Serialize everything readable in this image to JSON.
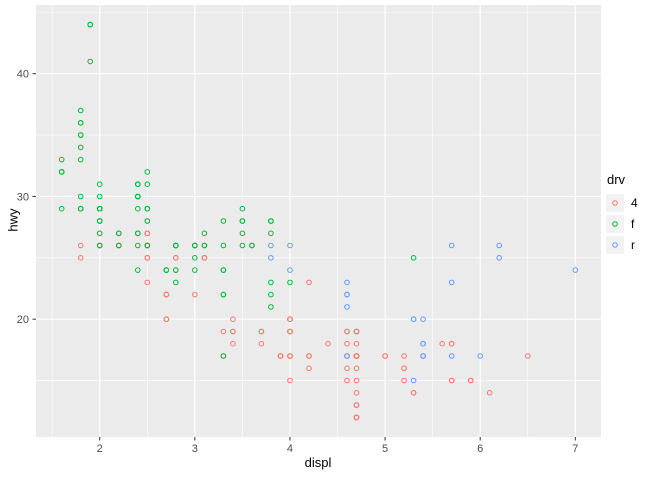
{
  "chart_data": {
    "type": "scatter",
    "title": "",
    "xlabel": "displ",
    "ylabel": "hwy",
    "x_ticks": [
      2,
      3,
      4,
      5,
      6,
      7
    ],
    "y_ticks": [
      20,
      30,
      40
    ],
    "x_minor_ticks": [
      1.5,
      2.5,
      3.5,
      4.5,
      5.5,
      6.5
    ],
    "y_minor_ticks": [
      15,
      25,
      35,
      45
    ],
    "x_domain": [
      1.33,
      7.27
    ],
    "y_domain": [
      10.4,
      45.6
    ],
    "grid": true,
    "panel_bg": "#EBEBEB",
    "grid_color": "#FFFFFF",
    "tick_color": "#333333",
    "tick_label_color": "#4D4D4D",
    "marker": "open-circle",
    "legend": {
      "title": "drv",
      "position": "right",
      "entries": [
        "4",
        "f",
        "r"
      ]
    },
    "series": [
      {
        "name": "4",
        "color": "#F8766D",
        "points": [
          [
            1.8,
            26
          ],
          [
            1.8,
            25
          ],
          [
            2.0,
            28
          ],
          [
            2.0,
            27
          ],
          [
            2.8,
            25
          ],
          [
            2.8,
            25
          ],
          [
            3.1,
            25
          ],
          [
            3.1,
            25
          ],
          [
            2.8,
            24
          ],
          [
            3.1,
            25
          ],
          [
            4.2,
            23
          ],
          [
            5.3,
            14
          ],
          [
            5.3,
            14
          ],
          [
            5.7,
            15
          ],
          [
            6.5,
            17
          ],
          [
            3.7,
            19
          ],
          [
            3.7,
            18
          ],
          [
            3.9,
            17
          ],
          [
            3.9,
            17
          ],
          [
            4.7,
            19
          ],
          [
            4.7,
            19
          ],
          [
            4.7,
            12
          ],
          [
            5.2,
            17
          ],
          [
            5.2,
            15
          ],
          [
            3.9,
            17
          ],
          [
            4.7,
            17
          ],
          [
            4.7,
            12
          ],
          [
            4.7,
            17
          ],
          [
            4.7,
            16
          ],
          [
            4.7,
            18
          ],
          [
            5.2,
            16
          ],
          [
            5.9,
            15
          ],
          [
            4.7,
            17
          ],
          [
            4.7,
            15
          ],
          [
            4.7,
            13
          ],
          [
            4.7,
            13
          ],
          [
            4.7,
            17
          ],
          [
            4.7,
            12
          ],
          [
            4.7,
            17
          ],
          [
            5.2,
            16
          ],
          [
            5.7,
            18
          ],
          [
            5.9,
            15
          ],
          [
            4.0,
            17
          ],
          [
            4.0,
            19
          ],
          [
            4.0,
            17
          ],
          [
            4.0,
            19
          ],
          [
            4.6,
            19
          ],
          [
            5.0,
            17
          ],
          [
            4.2,
            17
          ],
          [
            4.2,
            16
          ],
          [
            4.6,
            16
          ],
          [
            4.6,
            17
          ],
          [
            4.6,
            15
          ],
          [
            4.6,
            17
          ],
          [
            5.4,
            17
          ],
          [
            3.0,
            22
          ],
          [
            3.7,
            19
          ],
          [
            4.0,
            20
          ],
          [
            4.7,
            17
          ],
          [
            4.7,
            12
          ],
          [
            4.7,
            19
          ],
          [
            5.7,
            18
          ],
          [
            6.1,
            14
          ],
          [
            4.0,
            15
          ],
          [
            4.2,
            17
          ],
          [
            4.4,
            18
          ],
          [
            4.6,
            18
          ],
          [
            4.0,
            17
          ],
          [
            4.0,
            19
          ],
          [
            4.6,
            19
          ],
          [
            5.0,
            17
          ],
          [
            3.3,
            19
          ],
          [
            3.3,
            17
          ],
          [
            4.0,
            20
          ],
          [
            5.6,
            18
          ],
          [
            2.5,
            26
          ],
          [
            2.5,
            27
          ],
          [
            2.5,
            25
          ],
          [
            2.5,
            27
          ],
          [
            2.5,
            26
          ],
          [
            2.5,
            23
          ],
          [
            2.2,
            26
          ],
          [
            2.2,
            27
          ],
          [
            2.5,
            26
          ],
          [
            2.5,
            25
          ],
          [
            2.5,
            27
          ],
          [
            2.5,
            25
          ],
          [
            2.5,
            27
          ],
          [
            2.5,
            28
          ],
          [
            2.7,
            20
          ],
          [
            2.7,
            20
          ],
          [
            2.7,
            22
          ],
          [
            3.4,
            19
          ],
          [
            3.4,
            20
          ],
          [
            4.0,
            17
          ],
          [
            4.7,
            19
          ],
          [
            4.7,
            14
          ],
          [
            5.7,
            15
          ],
          [
            2.7,
            20
          ],
          [
            2.7,
            22
          ],
          [
            2.7,
            22
          ],
          [
            3.4,
            19
          ],
          [
            3.4,
            18
          ],
          [
            4.0,
            20
          ],
          [
            4.0,
            20
          ]
        ]
      },
      {
        "name": "f",
        "color": "#00BA38",
        "points": [
          [
            1.8,
            29
          ],
          [
            1.8,
            29
          ],
          [
            2.0,
            31
          ],
          [
            2.0,
            30
          ],
          [
            2.8,
            26
          ],
          [
            2.8,
            26
          ],
          [
            3.1,
            27
          ],
          [
            2.4,
            27
          ],
          [
            2.4,
            30
          ],
          [
            3.1,
            26
          ],
          [
            3.5,
            29
          ],
          [
            3.6,
            26
          ],
          [
            2.4,
            24
          ],
          [
            3.0,
            24
          ],
          [
            3.3,
            22
          ],
          [
            3.3,
            22
          ],
          [
            3.3,
            24
          ],
          [
            3.3,
            24
          ],
          [
            3.3,
            17
          ],
          [
            3.8,
            22
          ],
          [
            3.8,
            21
          ],
          [
            3.8,
            23
          ],
          [
            4.0,
            23
          ],
          [
            1.6,
            33
          ],
          [
            1.6,
            32
          ],
          [
            1.6,
            32
          ],
          [
            1.6,
            29
          ],
          [
            1.6,
            32
          ],
          [
            1.8,
            34
          ],
          [
            1.8,
            36
          ],
          [
            1.8,
            36
          ],
          [
            2.0,
            29
          ],
          [
            2.4,
            26
          ],
          [
            2.4,
            27
          ],
          [
            2.4,
            30
          ],
          [
            2.4,
            31
          ],
          [
            2.5,
            26
          ],
          [
            2.5,
            26
          ],
          [
            3.3,
            28
          ],
          [
            2.0,
            26
          ],
          [
            2.0,
            29
          ],
          [
            2.0,
            28
          ],
          [
            2.0,
            27
          ],
          [
            2.7,
            24
          ],
          [
            2.7,
            24
          ],
          [
            2.7,
            24
          ],
          [
            2.4,
            29
          ],
          [
            2.4,
            27
          ],
          [
            2.5,
            31
          ],
          [
            2.5,
            32
          ],
          [
            3.5,
            27
          ],
          [
            3.5,
            26
          ],
          [
            3.0,
            26
          ],
          [
            3.0,
            25
          ],
          [
            3.5,
            28
          ],
          [
            3.1,
            26
          ],
          [
            3.8,
            28
          ],
          [
            3.8,
            27
          ],
          [
            3.8,
            28
          ],
          [
            5.3,
            25
          ],
          [
            2.2,
            26
          ],
          [
            2.2,
            27
          ],
          [
            2.4,
            30
          ],
          [
            2.4,
            31
          ],
          [
            3.0,
            26
          ],
          [
            3.0,
            26
          ],
          [
            3.5,
            28
          ],
          [
            2.2,
            26
          ],
          [
            2.2,
            27
          ],
          [
            2.4,
            30
          ],
          [
            2.4,
            31
          ],
          [
            3.0,
            26
          ],
          [
            3.3,
            26
          ],
          [
            1.8,
            30
          ],
          [
            1.8,
            33
          ],
          [
            1.8,
            35
          ],
          [
            1.8,
            37
          ],
          [
            1.8,
            35
          ],
          [
            2.0,
            29
          ],
          [
            2.0,
            29
          ],
          [
            2.0,
            28
          ],
          [
            2.0,
            29
          ],
          [
            2.8,
            24
          ],
          [
            1.9,
            44
          ],
          [
            2.0,
            29
          ],
          [
            2.0,
            26
          ],
          [
            2.0,
            29
          ],
          [
            2.0,
            29
          ],
          [
            2.5,
            29
          ],
          [
            2.5,
            29
          ],
          [
            2.8,
            23
          ],
          [
            1.9,
            44
          ],
          [
            1.9,
            41
          ],
          [
            2.0,
            29
          ],
          [
            2.0,
            26
          ],
          [
            2.5,
            28
          ],
          [
            2.5,
            29
          ],
          [
            1.8,
            29
          ],
          [
            1.8,
            29
          ],
          [
            2.0,
            28
          ],
          [
            2.0,
            29
          ],
          [
            2.8,
            26
          ],
          [
            2.8,
            26
          ],
          [
            3.6,
            26
          ]
        ]
      },
      {
        "name": "r",
        "color": "#619CFF",
        "points": [
          [
            5.3,
            20
          ],
          [
            5.3,
            15
          ],
          [
            5.3,
            20
          ],
          [
            5.7,
            17
          ],
          [
            6.0,
            17
          ],
          [
            5.7,
            26
          ],
          [
            5.7,
            23
          ],
          [
            6.2,
            26
          ],
          [
            6.2,
            25
          ],
          [
            7.0,
            24
          ],
          [
            4.6,
            17
          ],
          [
            5.4,
            17
          ],
          [
            5.4,
            18
          ],
          [
            3.8,
            26
          ],
          [
            3.8,
            25
          ],
          [
            4.0,
            26
          ],
          [
            4.0,
            24
          ],
          [
            4.6,
            21
          ],
          [
            4.6,
            22
          ],
          [
            4.6,
            23
          ],
          [
            4.6,
            22
          ],
          [
            5.4,
            20
          ],
          [
            5.4,
            18
          ],
          [
            5.4,
            17
          ],
          [
            5.4,
            18
          ]
        ]
      }
    ]
  }
}
